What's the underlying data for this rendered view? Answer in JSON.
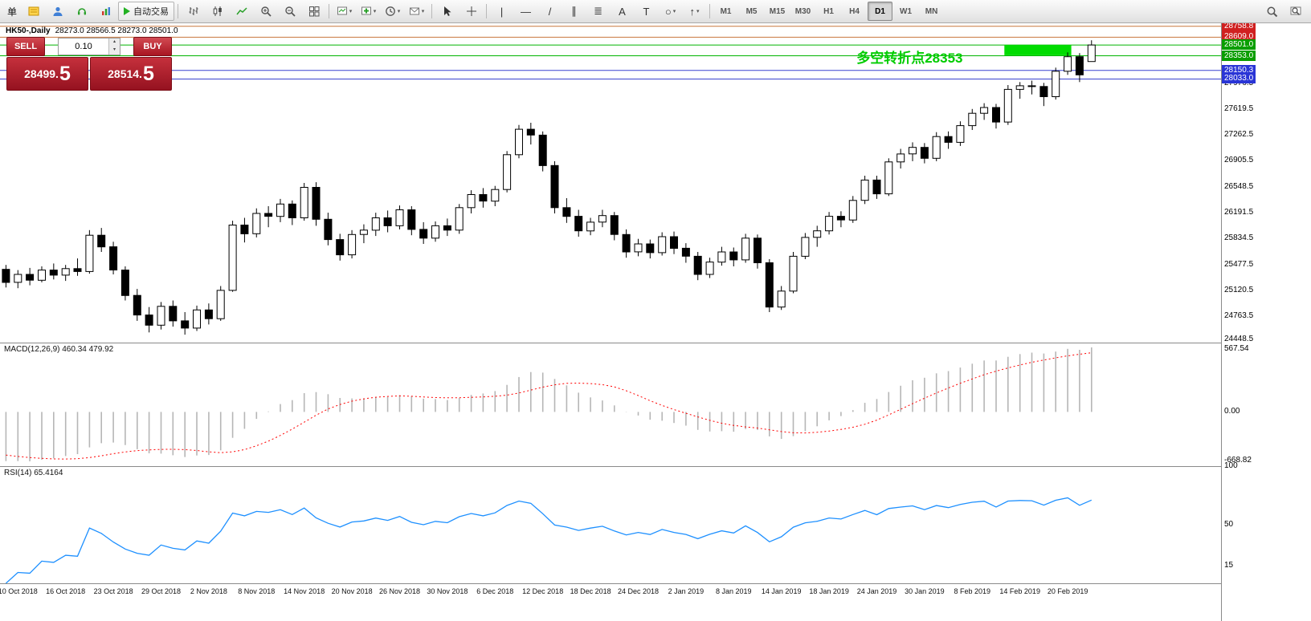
{
  "toolbar": {
    "menu_label": "单",
    "auto_trading_label": "自动交易",
    "text_tool_label": "A",
    "label_tool_label": "T",
    "timeframes": [
      "M1",
      "M5",
      "M15",
      "M30",
      "H1",
      "H4",
      "D1",
      "W1",
      "MN"
    ],
    "active_timeframe": "D1"
  },
  "trade_panel": {
    "sell_label": "SELL",
    "buy_label": "BUY",
    "volume": "0.10",
    "sell_price_main": "28499.",
    "sell_price_frac": "5",
    "buy_price_main": "28514.",
    "buy_price_frac": "5"
  },
  "chart": {
    "symbol_label": "HK50-,Daily",
    "ohlc_label": "28273.0 28566.5 28273.0 28501.0",
    "annotation": {
      "text": "多空转折点28353",
      "color": "#00cc00",
      "x_index": 71.3,
      "value": 28480
    }
  },
  "price_axis": {
    "badges": [
      {
        "value": 28758.8,
        "color": "#d02020"
      },
      {
        "value": 28609.0,
        "color": "#d02020"
      },
      {
        "value": 28501.0,
        "color": "#0a9e00"
      },
      {
        "value": 28353.0,
        "color": "#0a9e00"
      },
      {
        "value": 28150.3,
        "color": "#2a35d6"
      },
      {
        "value": 28033.0,
        "color": "#2a35d6"
      }
    ],
    "ticks": [
      27976.5,
      27619.5,
      27262.5,
      26905.5,
      26548.5,
      26191.5,
      25834.5,
      25477.5,
      25120.5,
      24763.5,
      24448.5
    ]
  },
  "hlines": [
    {
      "value": 28758.8,
      "color": "#c8763c"
    },
    {
      "value": 28609.0,
      "color": "#c8763c"
    },
    {
      "value": 28501.0,
      "color": "#00b400"
    },
    {
      "value": 28353.0,
      "color": "#00b400"
    },
    {
      "value": 28150.3,
      "color": "#3a43d0"
    },
    {
      "value": 28033.0,
      "color": "#3a43d0"
    }
  ],
  "highlight_rect": {
    "start_index": 84,
    "end_index": 89,
    "top_value": 28501,
    "bottom_value": 28360,
    "color": "#00dc00"
  },
  "macd_panel": {
    "label": "MACD(12,26,9) 460.34 479.92",
    "axis_max": "567.54",
    "axis_zero": "0.00",
    "axis_min": "-668.82",
    "fast": 12,
    "slow": 26,
    "signal": 9,
    "histogram_color": "#b6b6b6",
    "signal_color": "#ff0000"
  },
  "rsi_panel": {
    "label": "RSI(14) 65.4164",
    "period": 14,
    "line_color": "#1e90ff",
    "axis_labels": [
      100,
      50,
      15
    ]
  },
  "time_axis": [
    "10 Oct 2018",
    "16 Oct 2018",
    "23 Oct 2018",
    "29 Oct 2018",
    "2 Nov 2018",
    "8 Nov 2018",
    "14 Nov 2018",
    "20 Nov 2018",
    "26 Nov 2018",
    "30 Nov 2018",
    "6 Dec 2018",
    "12 Dec 2018",
    "18 Dec 2018",
    "24 Dec 2018",
    "2 Jan 2019",
    "8 Jan 2019",
    "14 Jan 2019",
    "18 Jan 2019",
    "24 Jan 2019",
    "30 Jan 2019",
    "8 Feb 2019",
    "14 Feb 2019",
    "20 Feb 2019"
  ],
  "chart_data": {
    "type": "candlestick",
    "symbol": "HK50-",
    "timeframe": "Daily",
    "ylim": [
      24400,
      28790
    ],
    "ohlc_current": {
      "open": 28273.0,
      "high": 28566.5,
      "low": 28273.0,
      "close": 28501.0
    },
    "bid": 28499.5,
    "ask": 28514.5,
    "preroll": {
      "from": 27300,
      "to": 25410,
      "bars": 26
    },
    "candles": [
      [
        25410,
        25470,
        25160,
        25230
      ],
      [
        25230,
        25400,
        25150,
        25340
      ],
      [
        25340,
        25430,
        25190,
        25260
      ],
      [
        25260,
        25450,
        25230,
        25400
      ],
      [
        25400,
        25490,
        25270,
        25330
      ],
      [
        25330,
        25470,
        25250,
        25420
      ],
      [
        25420,
        25560,
        25320,
        25380
      ],
      [
        25380,
        25950,
        25350,
        25880
      ],
      [
        25880,
        25980,
        25650,
        25720
      ],
      [
        25720,
        25790,
        25340,
        25400
      ],
      [
        25400,
        25450,
        24980,
        25050
      ],
      [
        25050,
        25140,
        24700,
        24780
      ],
      [
        24780,
        24890,
        24540,
        24640
      ],
      [
        24640,
        24960,
        24580,
        24900
      ],
      [
        24900,
        24980,
        24620,
        24700
      ],
      [
        24700,
        24820,
        24510,
        24600
      ],
      [
        24600,
        24910,
        24560,
        24850
      ],
      [
        24850,
        24940,
        24650,
        24730
      ],
      [
        24730,
        25180,
        24700,
        25120
      ],
      [
        25120,
        26080,
        25100,
        26020
      ],
      [
        26020,
        26120,
        25780,
        25900
      ],
      [
        25900,
        26250,
        25850,
        26180
      ],
      [
        26180,
        26280,
        25990,
        26140
      ],
      [
        26140,
        26380,
        26060,
        26310
      ],
      [
        26310,
        26360,
        26020,
        26120
      ],
      [
        26120,
        26600,
        26080,
        26540
      ],
      [
        26540,
        26610,
        26010,
        26100
      ],
      [
        26100,
        26190,
        25740,
        25820
      ],
      [
        25820,
        25900,
        25530,
        25610
      ],
      [
        25610,
        25950,
        25560,
        25890
      ],
      [
        25890,
        26030,
        25770,
        25950
      ],
      [
        25950,
        26190,
        25870,
        26120
      ],
      [
        26120,
        26220,
        25920,
        26010
      ],
      [
        26010,
        26290,
        25960,
        26230
      ],
      [
        26230,
        26280,
        25880,
        25960
      ],
      [
        25960,
        26060,
        25760,
        25840
      ],
      [
        25840,
        26070,
        25790,
        26010
      ],
      [
        26010,
        26110,
        25870,
        25950
      ],
      [
        25950,
        26310,
        25900,
        26260
      ],
      [
        26260,
        26500,
        26180,
        26440
      ],
      [
        26440,
        26530,
        26260,
        26350
      ],
      [
        26350,
        26560,
        26280,
        26510
      ],
      [
        26510,
        27040,
        26470,
        26990
      ],
      [
        26990,
        27400,
        26940,
        27340
      ],
      [
        27340,
        27430,
        27130,
        27260
      ],
      [
        27260,
        27310,
        26760,
        26840
      ],
      [
        26840,
        26900,
        26180,
        26260
      ],
      [
        26260,
        26390,
        26050,
        26140
      ],
      [
        26140,
        26230,
        25860,
        25940
      ],
      [
        25940,
        26120,
        25880,
        26060
      ],
      [
        26060,
        26230,
        25990,
        26150
      ],
      [
        26150,
        26200,
        25810,
        25890
      ],
      [
        25890,
        25960,
        25570,
        25650
      ],
      [
        25650,
        25830,
        25590,
        25760
      ],
      [
        25760,
        25820,
        25560,
        25640
      ],
      [
        25640,
        25920,
        25600,
        25860
      ],
      [
        25860,
        25930,
        25620,
        25700
      ],
      [
        25700,
        25770,
        25500,
        25590
      ],
      [
        25590,
        25650,
        25260,
        25340
      ],
      [
        25340,
        25570,
        25290,
        25510
      ],
      [
        25510,
        25720,
        25460,
        25650
      ],
      [
        25650,
        25710,
        25450,
        25540
      ],
      [
        25540,
        25900,
        25500,
        25840
      ],
      [
        25840,
        25890,
        25420,
        25500
      ],
      [
        25500,
        25550,
        24820,
        24890
      ],
      [
        24890,
        25180,
        24850,
        25110
      ],
      [
        25110,
        25650,
        25080,
        25590
      ],
      [
        25590,
        25910,
        25550,
        25850
      ],
      [
        25850,
        26010,
        25720,
        25940
      ],
      [
        25940,
        26200,
        25890,
        26140
      ],
      [
        26140,
        26210,
        25990,
        26090
      ],
      [
        26090,
        26420,
        26050,
        26360
      ],
      [
        26360,
        26700,
        26310,
        26640
      ],
      [
        26640,
        26700,
        26380,
        26450
      ],
      [
        26450,
        26940,
        26420,
        26890
      ],
      [
        26890,
        27070,
        26800,
        27000
      ],
      [
        27000,
        27160,
        26900,
        27090
      ],
      [
        27090,
        27150,
        26870,
        26940
      ],
      [
        26940,
        27300,
        26900,
        27240
      ],
      [
        27240,
        27310,
        27070,
        27160
      ],
      [
        27160,
        27450,
        27110,
        27390
      ],
      [
        27390,
        27620,
        27330,
        27560
      ],
      [
        27560,
        27700,
        27470,
        27640
      ],
      [
        27640,
        27690,
        27350,
        27440
      ],
      [
        27440,
        27950,
        27400,
        27890
      ],
      [
        27890,
        27990,
        27760,
        27940
      ],
      [
        27940,
        28010,
        27820,
        27930
      ],
      [
        27930,
        27980,
        27660,
        27790
      ],
      [
        27790,
        28190,
        27750,
        28140
      ],
      [
        28140,
        28400,
        28090,
        28340
      ],
      [
        28340,
        28390,
        27990,
        28090
      ],
      [
        28273,
        28566.5,
        28273,
        28501
      ]
    ]
  }
}
